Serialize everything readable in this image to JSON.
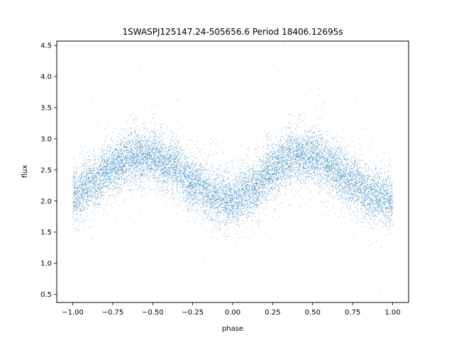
{
  "chart_data": {
    "type": "scatter",
    "title": "1SWASPJ125147.24-505656.6 Period 18406.12695s",
    "xlabel": "phase",
    "ylabel": "flux",
    "xlim": [
      -1.1,
      1.1
    ],
    "ylim": [
      0.37,
      4.57
    ],
    "xticks": [
      -1.0,
      -0.75,
      -0.5,
      -0.25,
      0.0,
      0.25,
      0.5,
      0.75,
      1.0
    ],
    "xtick_labels": [
      "−1.00",
      "−0.75",
      "−0.50",
      "−0.25",
      "0.00",
      "0.25",
      "0.50",
      "0.75",
      "1.00"
    ],
    "yticks": [
      0.5,
      1.0,
      1.5,
      2.0,
      2.5,
      3.0,
      3.5,
      4.0,
      4.5
    ],
    "ytick_labels": [
      "0.5",
      "1.0",
      "1.5",
      "2.0",
      "2.5",
      "3.0",
      "3.5",
      "4.0",
      "4.5"
    ],
    "grid": false,
    "legend": "none",
    "marker_color": "#1f77b4",
    "series": [
      {
        "x_range": [
          -1.0,
          1.0
        ],
        "curve_phase": [
          -1.0,
          -0.875,
          -0.75,
          -0.625,
          -0.5,
          -0.375,
          -0.25,
          -0.125,
          0.0,
          0.125,
          0.25,
          0.375,
          0.5,
          0.625,
          0.75,
          0.875,
          1.0
        ],
        "curve_flux": [
          2.08,
          2.3,
          2.55,
          2.72,
          2.7,
          2.55,
          2.3,
          2.08,
          2.0,
          2.2,
          2.5,
          2.72,
          2.72,
          2.55,
          2.3,
          2.08,
          2.0
        ],
        "point_count": 14000,
        "scatter_sigma": 0.22
      }
    ]
  }
}
